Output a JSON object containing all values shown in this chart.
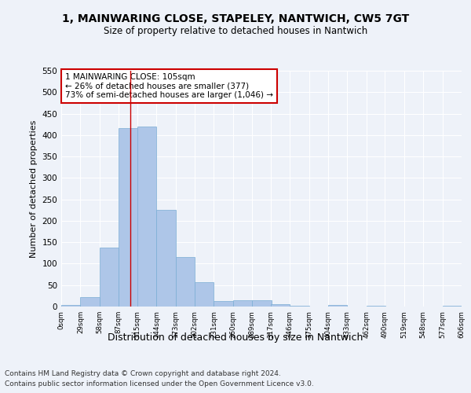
{
  "title": "1, MAINWARING CLOSE, STAPELEY, NANTWICH, CW5 7GT",
  "subtitle": "Size of property relative to detached houses in Nantwich",
  "xlabel": "Distribution of detached houses by size in Nantwich",
  "ylabel": "Number of detached properties",
  "bin_edges": [
    0,
    29,
    58,
    87,
    115,
    144,
    173,
    202,
    231,
    260,
    289,
    317,
    346,
    375,
    404,
    433,
    462,
    490,
    519,
    548,
    577
  ],
  "bar_heights": [
    3,
    22,
    138,
    417,
    420,
    226,
    116,
    57,
    12,
    14,
    14,
    5,
    1,
    0,
    3,
    0,
    1,
    0,
    0,
    0,
    1
  ],
  "bar_color": "#aec6e8",
  "bar_edgecolor": "#7aadd4",
  "background_color": "#eef2f9",
  "grid_color": "#ffffff",
  "vline_x": 105,
  "vline_color": "#cc0000",
  "annotation_text": "1 MAINWARING CLOSE: 105sqm\n← 26% of detached houses are smaller (377)\n73% of semi-detached houses are larger (1,046) →",
  "annotation_box_color": "#ffffff",
  "annotation_box_edgecolor": "#cc0000",
  "ylim": [
    0,
    550
  ],
  "yticks": [
    0,
    50,
    100,
    150,
    200,
    250,
    300,
    350,
    400,
    450,
    500,
    550
  ],
  "footnote1": "Contains HM Land Registry data © Crown copyright and database right 2024.",
  "footnote2": "Contains public sector information licensed under the Open Government Licence v3.0."
}
